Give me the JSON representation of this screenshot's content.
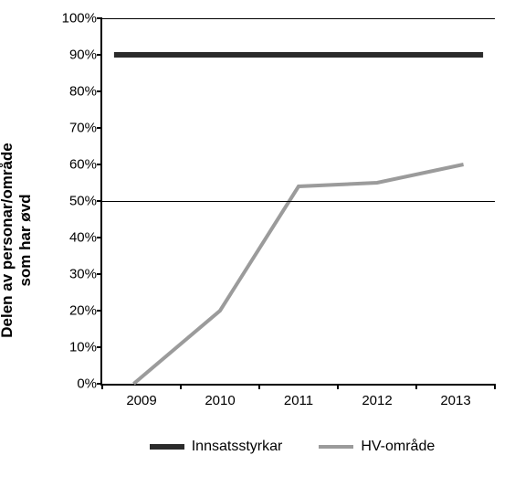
{
  "chart": {
    "type": "line",
    "ylabel": "Delen av personar/område\nsom har øvd",
    "ylabel_fontsize": 17,
    "ylabel_fontweight": "bold",
    "background_color": "#ffffff",
    "axis_color": "#000000",
    "grid_color": "#000000",
    "tick_fontsize": 15,
    "ylim": [
      0,
      100
    ],
    "yticks": [
      0,
      10,
      20,
      30,
      40,
      50,
      60,
      70,
      80,
      90,
      100
    ],
    "ytick_labels": [
      "0%",
      "10%",
      "20%",
      "30%",
      "40%",
      "50%",
      "60%",
      "70%",
      "80%",
      "90%",
      "100%"
    ],
    "ytick_format": "percent",
    "gridlines_at": [
      50,
      100
    ],
    "xtick_labels": [
      "2009",
      "2010",
      "2011",
      "2012",
      "2013"
    ],
    "xtick_positions_pct": [
      10,
      30,
      50,
      70,
      90
    ],
    "series": [
      {
        "name": "Innsatsstyrkar",
        "color": "#2b2b2b",
        "line_width": 6,
        "x_pct": [
          3,
          97
        ],
        "y": [
          90,
          90
        ]
      },
      {
        "name": "HV-område",
        "color": "#9b9b9b",
        "line_width": 4,
        "x_pct": [
          8,
          30,
          50,
          70,
          92
        ],
        "y": [
          0,
          20,
          54,
          55,
          60
        ]
      }
    ],
    "legend": {
      "items": [
        {
          "label": "Innsatsstyrkar",
          "color": "#2b2b2b",
          "line_width": 6
        },
        {
          "label": "HV-område",
          "color": "#9b9b9b",
          "line_width": 4
        }
      ],
      "fontsize": 16
    }
  }
}
